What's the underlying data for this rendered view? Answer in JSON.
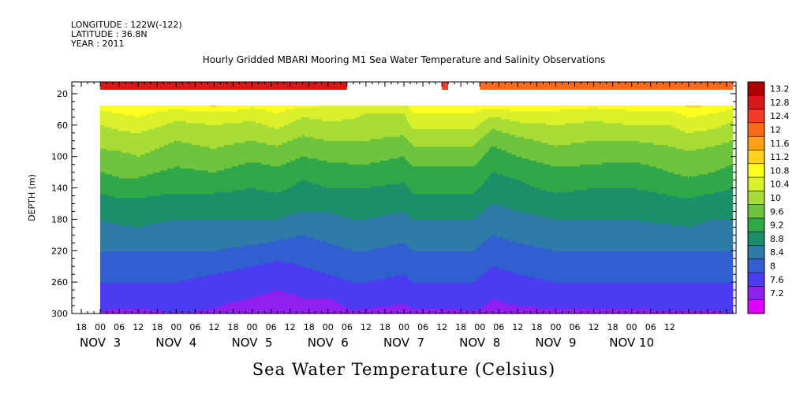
{
  "header": {
    "longitude": "LONGITUDE : 122W(-122)",
    "latitude": "LATITUDE : 36.8N",
    "year": "YEAR : 2011"
  },
  "chart_data": {
    "type": "heatmap",
    "title": "Hourly Gridded MBARI Mooring M1 Sea Water Temperature and Salinity Observations",
    "variable_title": "Sea Water Temperature (Celsius)",
    "ylabel": "DEPTH (m)",
    "ylim": [
      300,
      5
    ],
    "y_ticks": [
      20,
      60,
      100,
      140,
      180,
      220,
      260,
      300
    ],
    "x_range_hours": [
      -9,
      201
    ],
    "x_start_label": "NOV 3 00:00",
    "x_hour_ticks": [
      "18",
      "00",
      "06",
      "12",
      "18",
      "00",
      "06",
      "12",
      "18",
      "00",
      "06",
      "12",
      "18",
      "00",
      "06",
      "12",
      "18",
      "00",
      "06",
      "12",
      "18",
      "00",
      "06",
      "12",
      "18",
      "00",
      "06",
      "12",
      "18",
      "00",
      "06",
      "12"
    ],
    "x_day_labels": [
      "NOV  3",
      "NOV  4",
      "NOV  5",
      "NOV  6",
      "NOV  7",
      "NOV  8",
      "NOV  9",
      "NOV 10"
    ],
    "colorbar": {
      "levels": [
        "13.2",
        "12.8",
        "12.4",
        "12",
        "11.6",
        "11.2",
        "10.8",
        "10.4",
        "10",
        "9.6",
        "9.2",
        "8.8",
        "8.4",
        "8",
        "7.6",
        "7.2"
      ],
      "colors": [
        "#b00000",
        "#d81818",
        "#f03c28",
        "#ff6a1a",
        "#ffa01a",
        "#ffd21e",
        "#ffff1e",
        "#d9f02a",
        "#a8dd38",
        "#6ec43c",
        "#30a84a",
        "#1b8e6a",
        "#2e7aa8",
        "#3060d0",
        "#4a3cf0",
        "#9020f0",
        "#e000ff"
      ]
    },
    "surface_band": {
      "depth_top": 5,
      "depth_bottom": 15,
      "segments": [
        {
          "start_hour": 0,
          "end_hour": 78,
          "value": 13.0
        },
        {
          "start_hour": 108,
          "end_hour": 110,
          "value": 12.6
        },
        {
          "start_hour": 120,
          "end_hour": 200,
          "value": 12.2
        }
      ]
    },
    "data_top_depth": 35,
    "data_end_hour": 200,
    "profile_depths": [
      35,
      45,
      60,
      80,
      100,
      120,
      140,
      160,
      180,
      200,
      220,
      240,
      260,
      280,
      300
    ],
    "profile_times": [
      0,
      6,
      12,
      24,
      36,
      48,
      56,
      64,
      72,
      80,
      84,
      96,
      99,
      108,
      118,
      124,
      132,
      144,
      156,
      168,
      180,
      186,
      194,
      200
    ],
    "profiles": [
      [
        10.9,
        10.7,
        10.4,
        10.1,
        9.9,
        9.6,
        9.3,
        9.0,
        8.8,
        8.6,
        8.4,
        8.2,
        8.0,
        7.8,
        7.55
      ],
      [
        11.2,
        10.8,
        10.5,
        10.2,
        9.9,
        9.7,
        9.4,
        9.1,
        8.9,
        8.6,
        8.4,
        8.2,
        8.0,
        7.8,
        7.5
      ],
      [
        11.1,
        10.9,
        10.6,
        10.2,
        10.0,
        9.7,
        9.4,
        9.1,
        8.9,
        8.7,
        8.4,
        8.2,
        8.0,
        7.8,
        7.5
      ],
      [
        11.0,
        10.6,
        10.3,
        10.0,
        9.8,
        9.5,
        9.3,
        9.0,
        8.8,
        8.6,
        8.4,
        8.2,
        8.0,
        7.8,
        7.6
      ],
      [
        11.3,
        10.7,
        10.4,
        10.1,
        9.9,
        9.6,
        9.3,
        9.0,
        8.8,
        8.6,
        8.4,
        8.1,
        7.9,
        7.7,
        7.55
      ],
      [
        10.9,
        10.6,
        10.3,
        10.0,
        9.7,
        9.4,
        9.2,
        9.0,
        8.8,
        8.6,
        8.3,
        8.0,
        7.8,
        7.6,
        7.4
      ],
      [
        11.0,
        10.8,
        10.5,
        10.1,
        9.8,
        9.5,
        9.3,
        9.0,
        8.8,
        8.5,
        8.2,
        7.9,
        7.7,
        7.5,
        7.4
      ],
      [
        10.9,
        10.5,
        10.2,
        9.9,
        9.6,
        9.3,
        9.1,
        8.9,
        8.7,
        8.4,
        8.2,
        8.0,
        7.8,
        7.6,
        7.4
      ],
      [
        10.8,
        10.6,
        10.3,
        10.0,
        9.7,
        9.4,
        9.2,
        8.9,
        8.7,
        8.5,
        8.3,
        8.1,
        7.9,
        7.6,
        7.35
      ],
      [
        10.7,
        10.5,
        10.3,
        10.0,
        9.7,
        9.5,
        9.2,
        9.0,
        8.8,
        8.6,
        8.4,
        8.2,
        8.0,
        7.8,
        7.55
      ],
      [
        10.6,
        10.4,
        10.2,
        10.0,
        9.7,
        9.5,
        9.2,
        9.0,
        8.8,
        8.6,
        8.4,
        8.2,
        8.0,
        7.8,
        7.5
      ],
      [
        10.6,
        10.4,
        10.2,
        9.9,
        9.6,
        9.4,
        9.1,
        8.9,
        8.7,
        8.5,
        8.3,
        8.1,
        7.9,
        7.7,
        7.45
      ],
      [
        11.1,
        10.8,
        10.5,
        10.1,
        9.8,
        9.5,
        9.3,
        9.0,
        8.8,
        8.6,
        8.4,
        8.2,
        8.0,
        7.8,
        7.5
      ],
      [
        11.0,
        10.8,
        10.5,
        10.1,
        9.8,
        9.5,
        9.3,
        9.0,
        8.8,
        8.6,
        8.4,
        8.2,
        8.0,
        7.8,
        7.5
      ],
      [
        11.0,
        10.8,
        10.5,
        10.1,
        9.8,
        9.5,
        9.3,
        9.0,
        8.8,
        8.6,
        8.4,
        8.2,
        8.0,
        7.8,
        7.55
      ],
      [
        11.0,
        10.5,
        10.1,
        9.7,
        9.4,
        9.2,
        9.0,
        8.8,
        8.6,
        8.4,
        8.2,
        8.0,
        7.8,
        7.6,
        7.5
      ],
      [
        11.1,
        10.7,
        10.3,
        9.9,
        9.6,
        9.3,
        9.1,
        8.9,
        8.7,
        8.5,
        8.3,
        8.1,
        7.9,
        7.7,
        7.5
      ],
      [
        11.0,
        10.7,
        10.4,
        10.1,
        9.8,
        9.5,
        9.3,
        9.0,
        8.8,
        8.6,
        8.4,
        8.2,
        8.0,
        7.8,
        7.5
      ],
      [
        10.9,
        10.6,
        10.3,
        10.0,
        9.7,
        9.5,
        9.2,
        9.0,
        8.8,
        8.6,
        8.4,
        8.2,
        8.0,
        7.8,
        7.5
      ],
      [
        11.0,
        10.7,
        10.4,
        10.0,
        9.7,
        9.4,
        9.2,
        9.0,
        8.8,
        8.6,
        8.4,
        8.2,
        8.0,
        7.8,
        7.5
      ],
      [
        11.0,
        10.7,
        10.4,
        10.1,
        9.8,
        9.6,
        9.3,
        9.1,
        8.9,
        8.6,
        8.4,
        8.2,
        8.0,
        7.8,
        7.55
      ],
      [
        11.3,
        10.9,
        10.6,
        10.2,
        9.9,
        9.7,
        9.4,
        9.1,
        8.9,
        8.7,
        8.4,
        8.2,
        8.0,
        7.8,
        7.55
      ],
      [
        11.2,
        10.8,
        10.5,
        10.1,
        9.8,
        9.6,
        9.3,
        9.0,
        8.8,
        8.6,
        8.4,
        8.2,
        8.0,
        7.8,
        7.55
      ],
      [
        10.9,
        10.6,
        10.3,
        10.0,
        9.7,
        9.5,
        9.2,
        9.0,
        8.8,
        8.6,
        8.4,
        8.2,
        8.0,
        7.8,
        7.6
      ]
    ]
  }
}
